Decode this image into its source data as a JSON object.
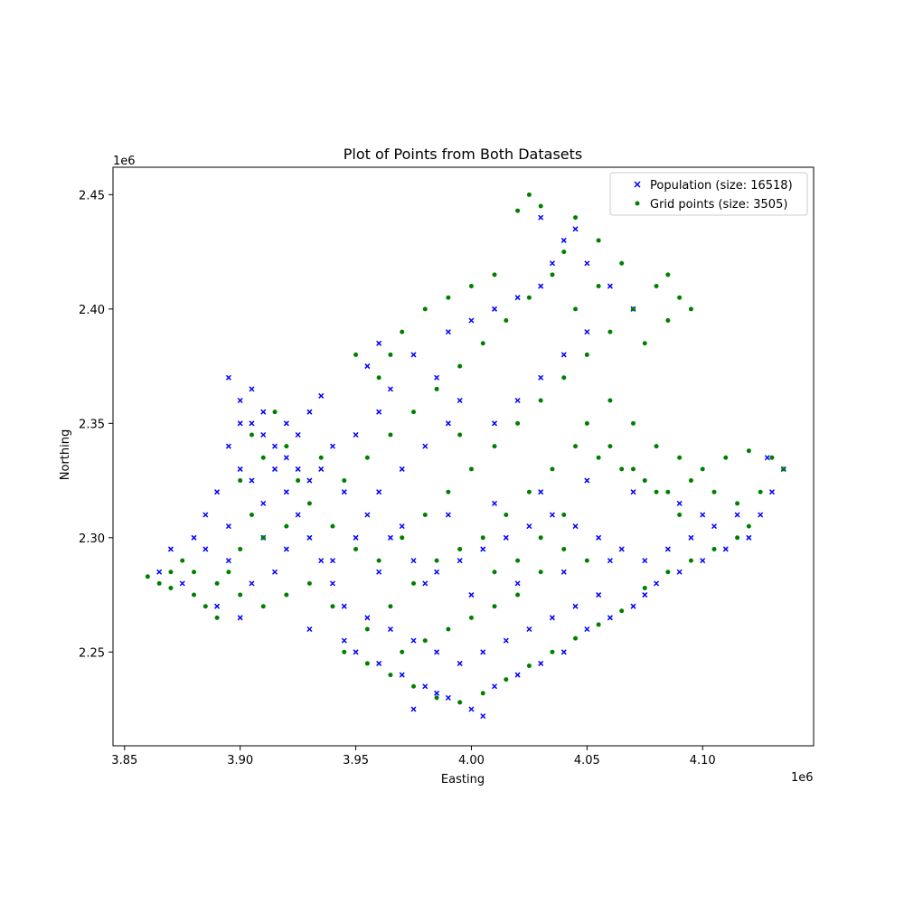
{
  "chart_data": {
    "type": "scatter",
    "title": "Plot of Points from Both Datasets",
    "xlabel": "Easting",
    "ylabel": "Northing",
    "x_offset_label": "1e6",
    "y_offset_label": "1e6",
    "xlim": [
      3.845,
      4.148
    ],
    "ylim": [
      2.209,
      2.462
    ],
    "xticks": [
      3.85,
      3.9,
      3.95,
      4.0,
      4.05,
      4.1
    ],
    "xtick_labels": [
      "3.85",
      "3.90",
      "3.95",
      "4.00",
      "4.05",
      "4.10"
    ],
    "yticks": [
      2.25,
      2.3,
      2.35,
      2.4,
      2.45
    ],
    "ytick_labels": [
      "2.25",
      "2.30",
      "2.35",
      "2.40",
      "2.45"
    ],
    "grid": false,
    "legend_position": "top-right",
    "series": [
      {
        "name": "Population (size: 16518)",
        "marker": "x",
        "color": "#0000ff",
        "points": [
          [
            3.895,
            2.37
          ],
          [
            3.9,
            2.36
          ],
          [
            3.905,
            2.35
          ],
          [
            3.91,
            2.345
          ],
          [
            3.915,
            2.34
          ],
          [
            3.92,
            2.335
          ],
          [
            3.925,
            2.33
          ],
          [
            3.93,
            2.325
          ],
          [
            3.9,
            2.33
          ],
          [
            3.905,
            2.325
          ],
          [
            3.89,
            2.32
          ],
          [
            3.885,
            2.31
          ],
          [
            3.895,
            2.305
          ],
          [
            3.91,
            2.3
          ],
          [
            3.92,
            2.295
          ],
          [
            3.88,
            2.3
          ],
          [
            3.87,
            2.295
          ],
          [
            3.865,
            2.285
          ],
          [
            3.875,
            2.28
          ],
          [
            3.89,
            2.27
          ],
          [
            3.9,
            2.265
          ],
          [
            3.93,
            2.26
          ],
          [
            3.945,
            2.255
          ],
          [
            3.95,
            2.25
          ],
          [
            3.96,
            2.245
          ],
          [
            3.97,
            2.24
          ],
          [
            3.98,
            2.235
          ],
          [
            3.99,
            2.23
          ],
          [
            4.0,
            2.225
          ],
          [
            4.005,
            2.222
          ],
          [
            3.975,
            2.225
          ],
          [
            3.985,
            2.232
          ],
          [
            4.01,
            2.235
          ],
          [
            4.02,
            2.24
          ],
          [
            4.03,
            2.245
          ],
          [
            4.04,
            2.25
          ],
          [
            4.05,
            2.26
          ],
          [
            4.06,
            2.265
          ],
          [
            4.07,
            2.27
          ],
          [
            4.075,
            2.275
          ],
          [
            4.08,
            2.28
          ],
          [
            4.09,
            2.285
          ],
          [
            4.1,
            2.29
          ],
          [
            4.11,
            2.295
          ],
          [
            4.12,
            2.3
          ],
          [
            4.125,
            2.31
          ],
          [
            4.13,
            2.32
          ],
          [
            4.135,
            2.33
          ],
          [
            4.128,
            2.335
          ],
          [
            4.06,
            2.29
          ],
          [
            4.04,
            2.285
          ],
          [
            4.02,
            2.28
          ],
          [
            4.0,
            2.275
          ],
          [
            3.98,
            2.28
          ],
          [
            3.96,
            2.285
          ],
          [
            3.94,
            2.29
          ],
          [
            3.95,
            2.3
          ],
          [
            3.97,
            2.305
          ],
          [
            3.99,
            2.31
          ],
          [
            4.01,
            2.315
          ],
          [
            4.03,
            2.32
          ],
          [
            4.05,
            2.325
          ],
          [
            4.07,
            2.32
          ],
          [
            4.09,
            2.315
          ],
          [
            4.1,
            2.31
          ],
          [
            3.96,
            2.32
          ],
          [
            3.97,
            2.33
          ],
          [
            3.98,
            2.34
          ],
          [
            3.99,
            2.35
          ],
          [
            3.995,
            2.36
          ],
          [
            3.985,
            2.37
          ],
          [
            3.975,
            2.38
          ],
          [
            3.99,
            2.39
          ],
          [
            4.0,
            2.395
          ],
          [
            4.01,
            2.4
          ],
          [
            4.02,
            2.405
          ],
          [
            4.03,
            2.41
          ],
          [
            4.035,
            2.42
          ],
          [
            4.04,
            2.43
          ],
          [
            4.03,
            2.44
          ],
          [
            4.045,
            2.435
          ],
          [
            4.05,
            2.42
          ],
          [
            4.06,
            2.41
          ],
          [
            4.07,
            2.4
          ],
          [
            4.05,
            2.39
          ],
          [
            4.04,
            2.38
          ],
          [
            4.03,
            2.37
          ],
          [
            4.02,
            2.36
          ],
          [
            4.01,
            2.35
          ],
          [
            3.96,
            2.385
          ],
          [
            3.955,
            2.375
          ],
          [
            3.965,
            2.365
          ],
          [
            3.96,
            2.355
          ],
          [
            3.95,
            2.345
          ],
          [
            3.94,
            2.34
          ],
          [
            3.935,
            2.33
          ],
          [
            3.945,
            2.32
          ],
          [
            3.955,
            2.31
          ],
          [
            3.965,
            2.3
          ],
          [
            3.975,
            2.29
          ],
          [
            3.985,
            2.285
          ],
          [
            3.995,
            2.29
          ],
          [
            4.005,
            2.295
          ],
          [
            4.015,
            2.3
          ],
          [
            4.025,
            2.305
          ],
          [
            4.035,
            2.31
          ],
          [
            4.045,
            2.305
          ],
          [
            4.055,
            2.3
          ],
          [
            4.065,
            2.295
          ],
          [
            4.075,
            2.29
          ],
          [
            4.085,
            2.295
          ],
          [
            4.095,
            2.3
          ],
          [
            4.105,
            2.305
          ],
          [
            4.115,
            2.31
          ],
          [
            3.925,
            2.31
          ],
          [
            3.93,
            2.3
          ],
          [
            3.935,
            2.29
          ],
          [
            3.94,
            2.28
          ],
          [
            3.945,
            2.27
          ],
          [
            3.955,
            2.265
          ],
          [
            3.965,
            2.26
          ],
          [
            3.975,
            2.255
          ],
          [
            3.985,
            2.25
          ],
          [
            3.995,
            2.245
          ],
          [
            4.005,
            2.25
          ],
          [
            4.015,
            2.255
          ],
          [
            4.025,
            2.26
          ],
          [
            4.035,
            2.265
          ],
          [
            4.045,
            2.27
          ],
          [
            4.055,
            2.275
          ],
          [
            3.915,
            2.285
          ],
          [
            3.905,
            2.28
          ],
          [
            3.895,
            2.29
          ],
          [
            3.885,
            2.295
          ],
          [
            3.91,
            2.315
          ],
          [
            3.92,
            2.32
          ],
          [
            3.915,
            2.33
          ],
          [
            3.925,
            2.345
          ],
          [
            3.93,
            2.355
          ],
          [
            3.935,
            2.362
          ],
          [
            3.9,
            2.35
          ],
          [
            3.895,
            2.34
          ],
          [
            3.905,
            2.365
          ],
          [
            3.91,
            2.355
          ],
          [
            3.92,
            2.35
          ]
        ]
      },
      {
        "name": "Grid points (size: 3505)",
        "marker": "o",
        "color": "#008000",
        "points": [
          [
            3.86,
            2.283
          ],
          [
            3.865,
            2.28
          ],
          [
            3.87,
            2.285
          ],
          [
            3.875,
            2.29
          ],
          [
            3.88,
            2.275
          ],
          [
            3.885,
            2.27
          ],
          [
            3.89,
            2.265
          ],
          [
            3.895,
            2.285
          ],
          [
            3.9,
            2.295
          ],
          [
            3.905,
            2.31
          ],
          [
            3.9,
            2.325
          ],
          [
            3.91,
            2.335
          ],
          [
            3.905,
            2.345
          ],
          [
            3.915,
            2.355
          ],
          [
            3.92,
            2.34
          ],
          [
            3.925,
            2.325
          ],
          [
            3.93,
            2.315
          ],
          [
            3.94,
            2.305
          ],
          [
            3.95,
            2.295
          ],
          [
            3.96,
            2.29
          ],
          [
            3.97,
            2.3
          ],
          [
            3.98,
            2.31
          ],
          [
            3.99,
            2.32
          ],
          [
            4.0,
            2.33
          ],
          [
            4.01,
            2.34
          ],
          [
            4.02,
            2.35
          ],
          [
            4.03,
            2.36
          ],
          [
            4.04,
            2.37
          ],
          [
            4.05,
            2.38
          ],
          [
            4.06,
            2.39
          ],
          [
            4.07,
            2.4
          ],
          [
            4.08,
            2.41
          ],
          [
            4.085,
            2.415
          ],
          [
            4.09,
            2.405
          ],
          [
            4.065,
            2.42
          ],
          [
            4.055,
            2.43
          ],
          [
            4.045,
            2.44
          ],
          [
            4.03,
            2.445
          ],
          [
            4.025,
            2.45
          ],
          [
            4.02,
            2.443
          ],
          [
            4.04,
            2.425
          ],
          [
            4.035,
            2.415
          ],
          [
            4.025,
            2.405
          ],
          [
            4.015,
            2.395
          ],
          [
            4.005,
            2.385
          ],
          [
            3.995,
            2.375
          ],
          [
            3.985,
            2.365
          ],
          [
            3.975,
            2.355
          ],
          [
            3.965,
            2.345
          ],
          [
            3.955,
            2.335
          ],
          [
            3.945,
            2.325
          ],
          [
            3.935,
            2.335
          ],
          [
            3.96,
            2.37
          ],
          [
            3.965,
            2.38
          ],
          [
            3.97,
            2.39
          ],
          [
            3.98,
            2.4
          ],
          [
            3.99,
            2.405
          ],
          [
            4.0,
            2.41
          ],
          [
            4.01,
            2.415
          ],
          [
            3.95,
            2.38
          ],
          [
            4.06,
            2.36
          ],
          [
            4.07,
            2.35
          ],
          [
            4.08,
            2.34
          ],
          [
            4.09,
            2.335
          ],
          [
            4.1,
            2.33
          ],
          [
            4.11,
            2.335
          ],
          [
            4.12,
            2.338
          ],
          [
            4.13,
            2.335
          ],
          [
            4.135,
            2.33
          ],
          [
            4.125,
            2.32
          ],
          [
            4.115,
            2.315
          ],
          [
            4.105,
            2.32
          ],
          [
            4.095,
            2.325
          ],
          [
            4.085,
            2.32
          ],
          [
            4.075,
            2.325
          ],
          [
            4.065,
            2.33
          ],
          [
            4.055,
            2.335
          ],
          [
            4.045,
            2.34
          ],
          [
            4.035,
            2.33
          ],
          [
            4.025,
            2.32
          ],
          [
            4.015,
            2.31
          ],
          [
            4.005,
            2.3
          ],
          [
            3.995,
            2.295
          ],
          [
            3.985,
            2.29
          ],
          [
            3.975,
            2.28
          ],
          [
            3.965,
            2.27
          ],
          [
            3.955,
            2.26
          ],
          [
            3.945,
            2.25
          ],
          [
            3.955,
            2.245
          ],
          [
            3.965,
            2.24
          ],
          [
            3.975,
            2.235
          ],
          [
            3.985,
            2.23
          ],
          [
            3.995,
            2.228
          ],
          [
            4.005,
            2.232
          ],
          [
            4.015,
            2.238
          ],
          [
            4.025,
            2.244
          ],
          [
            4.035,
            2.25
          ],
          [
            4.045,
            2.256
          ],
          [
            4.055,
            2.262
          ],
          [
            4.065,
            2.268
          ],
          [
            4.075,
            2.278
          ],
          [
            4.085,
            2.285
          ],
          [
            4.095,
            2.29
          ],
          [
            4.105,
            2.295
          ],
          [
            4.115,
            2.3
          ],
          [
            4.12,
            2.305
          ],
          [
            4.05,
            2.29
          ],
          [
            4.04,
            2.295
          ],
          [
            4.03,
            2.285
          ],
          [
            4.02,
            2.275
          ],
          [
            4.01,
            2.27
          ],
          [
            4.0,
            2.265
          ],
          [
            3.99,
            2.26
          ],
          [
            3.98,
            2.255
          ],
          [
            3.97,
            2.25
          ],
          [
            3.94,
            2.27
          ],
          [
            3.93,
            2.28
          ],
          [
            3.92,
            2.275
          ],
          [
            3.91,
            2.27
          ],
          [
            3.9,
            2.275
          ],
          [
            3.89,
            2.28
          ],
          [
            3.88,
            2.285
          ],
          [
            3.87,
            2.278
          ],
          [
            3.91,
            2.3
          ],
          [
            3.92,
            2.305
          ],
          [
            4.05,
            2.35
          ],
          [
            4.06,
            2.34
          ],
          [
            4.07,
            2.33
          ],
          [
            4.08,
            2.32
          ],
          [
            4.09,
            2.31
          ],
          [
            4.04,
            2.31
          ],
          [
            4.03,
            2.3
          ],
          [
            4.02,
            2.29
          ],
          [
            4.01,
            2.285
          ],
          [
            3.995,
            2.345
          ],
          [
            4.045,
            2.4
          ],
          [
            4.055,
            2.41
          ],
          [
            4.075,
            2.385
          ],
          [
            4.085,
            2.395
          ],
          [
            4.095,
            2.4
          ]
        ]
      }
    ]
  }
}
